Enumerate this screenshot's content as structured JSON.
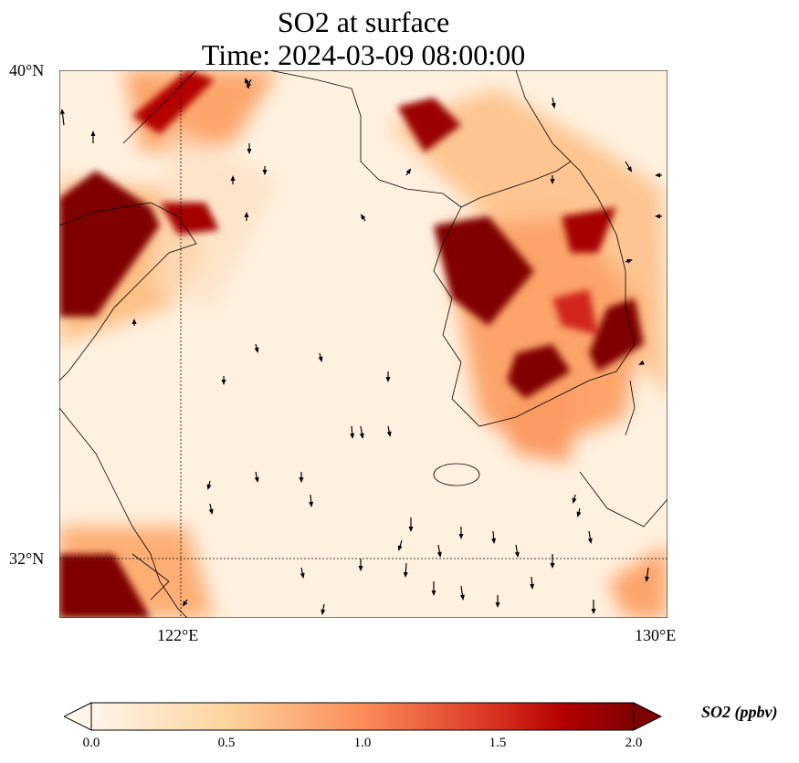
{
  "title": {
    "line1": "SO2 at surface",
    "line2": "Time: 2024-03-09 08:00:00"
  },
  "axes": {
    "lat_ticks": [
      "40°N",
      "32°N"
    ],
    "lon_ticks": [
      "122°E",
      "130°E"
    ],
    "lon_range": [
      120,
      130
    ],
    "lat_range": [
      31,
      40
    ]
  },
  "colorbar": {
    "label": "SO2 (ppbv)",
    "ticks": [
      "0.0",
      "0.5",
      "1.0",
      "1.5",
      "2.0"
    ],
    "range": [
      0,
      2
    ],
    "extend": "both",
    "colors": [
      "#fff5eb",
      "#fdd49e",
      "#fc8d59",
      "#e34a33",
      "#b30000",
      "#7f0000"
    ]
  }
}
